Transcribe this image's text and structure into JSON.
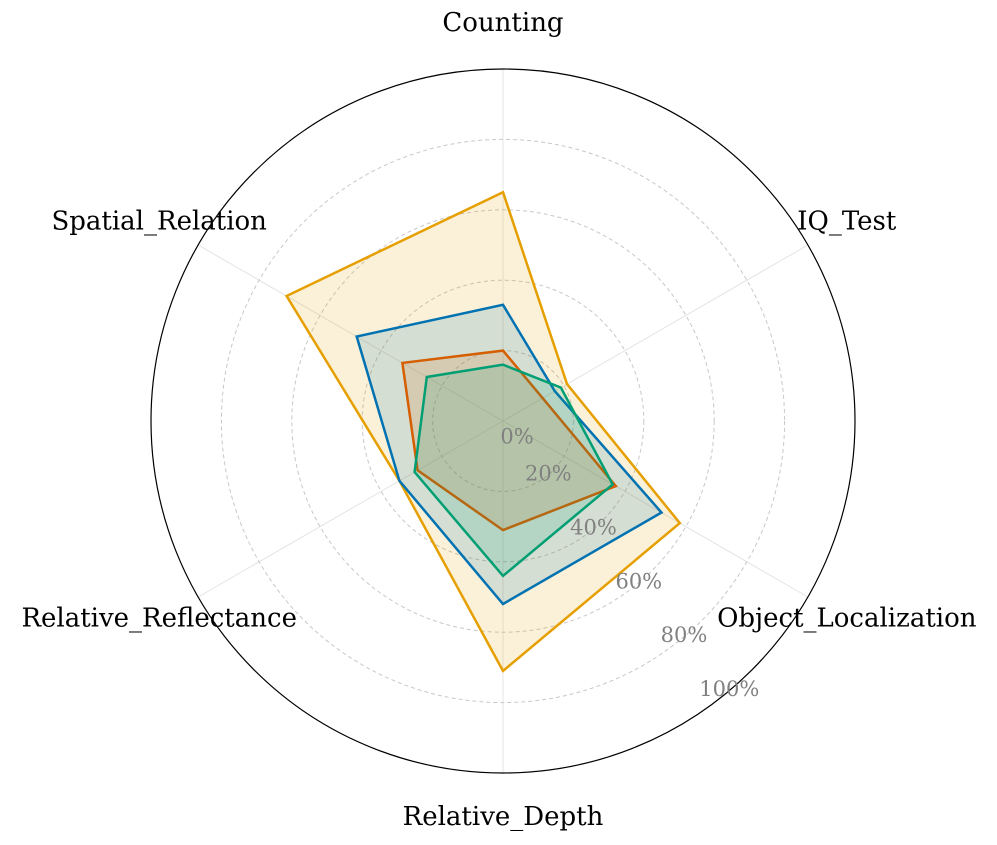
{
  "chart_data": {
    "type": "radar",
    "axes": [
      "Counting",
      "IQ_Test",
      "Object_Localization",
      "Relative_Depth",
      "Relative_Reflectance",
      "Spatial_Relation"
    ],
    "tick_labels": [
      "0%",
      "20%",
      "40%",
      "60%",
      "80%",
      "100%"
    ],
    "rlim": [
      0,
      100
    ],
    "grid": true,
    "series": [
      {
        "color": "#E69F00",
        "values": [
          65,
          21,
          58,
          71,
          34,
          71
        ]
      },
      {
        "color": "#0072B2",
        "values": [
          33,
          17,
          52,
          52,
          34,
          48
        ]
      },
      {
        "color": "#D55E00",
        "values": [
          20,
          13,
          37,
          31,
          28,
          33
        ]
      },
      {
        "color": "#009E73",
        "values": [
          16,
          19,
          36,
          44,
          29,
          25
        ]
      }
    ]
  }
}
